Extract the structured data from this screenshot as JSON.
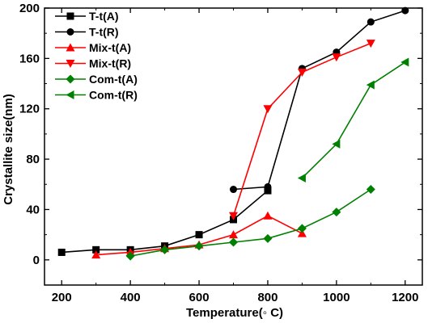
{
  "chart_data": {
    "type": "line",
    "xlabel": "Temperature(◦ C)",
    "ylabel": "Crystallite size(nm)",
    "xlim": [
      150,
      1250
    ],
    "ylim": [
      -20,
      200
    ],
    "xticks": [
      200,
      400,
      600,
      800,
      1000,
      1200
    ],
    "yticks": [
      0,
      40,
      80,
      120,
      160,
      200
    ],
    "grid": false,
    "legend_position": "top-left",
    "series": [
      {
        "name": "T-t(A)",
        "color": "#000000",
        "marker": "square",
        "x": [
          200,
          300,
          400,
          500,
          600,
          700,
          800
        ],
        "y": [
          6,
          8,
          8,
          11,
          20,
          32,
          55
        ]
      },
      {
        "name": "T-t(R)",
        "color": "#000000",
        "marker": "circle",
        "x": [
          700,
          800,
          900,
          1000,
          1100,
          1200
        ],
        "y": [
          56,
          58,
          152,
          165,
          189,
          198
        ]
      },
      {
        "name": "Mix-t(A)",
        "color": "#ff0000",
        "marker": "triangle-up",
        "x": [
          300,
          400,
          500,
          600,
          700,
          800,
          900
        ],
        "y": [
          4,
          6,
          9,
          12,
          20,
          35,
          21
        ]
      },
      {
        "name": "Mix-t(R)",
        "color": "#ff0000",
        "marker": "triangle-down",
        "x": [
          700,
          800,
          900,
          1000,
          1100
        ],
        "y": [
          35,
          120,
          149,
          161,
          172
        ]
      },
      {
        "name": "Com-t(A)",
        "color": "#008000",
        "marker": "diamond",
        "x": [
          400,
          500,
          600,
          700,
          800,
          900,
          1000,
          1100
        ],
        "y": [
          3,
          8,
          11,
          14,
          17,
          25,
          38,
          56
        ]
      },
      {
        "name": "Com-t(R)",
        "color": "#008000",
        "marker": "triangle-left",
        "x": [
          900,
          1000,
          1100,
          1200
        ],
        "y": [
          65,
          92,
          139,
          157
        ]
      }
    ]
  }
}
